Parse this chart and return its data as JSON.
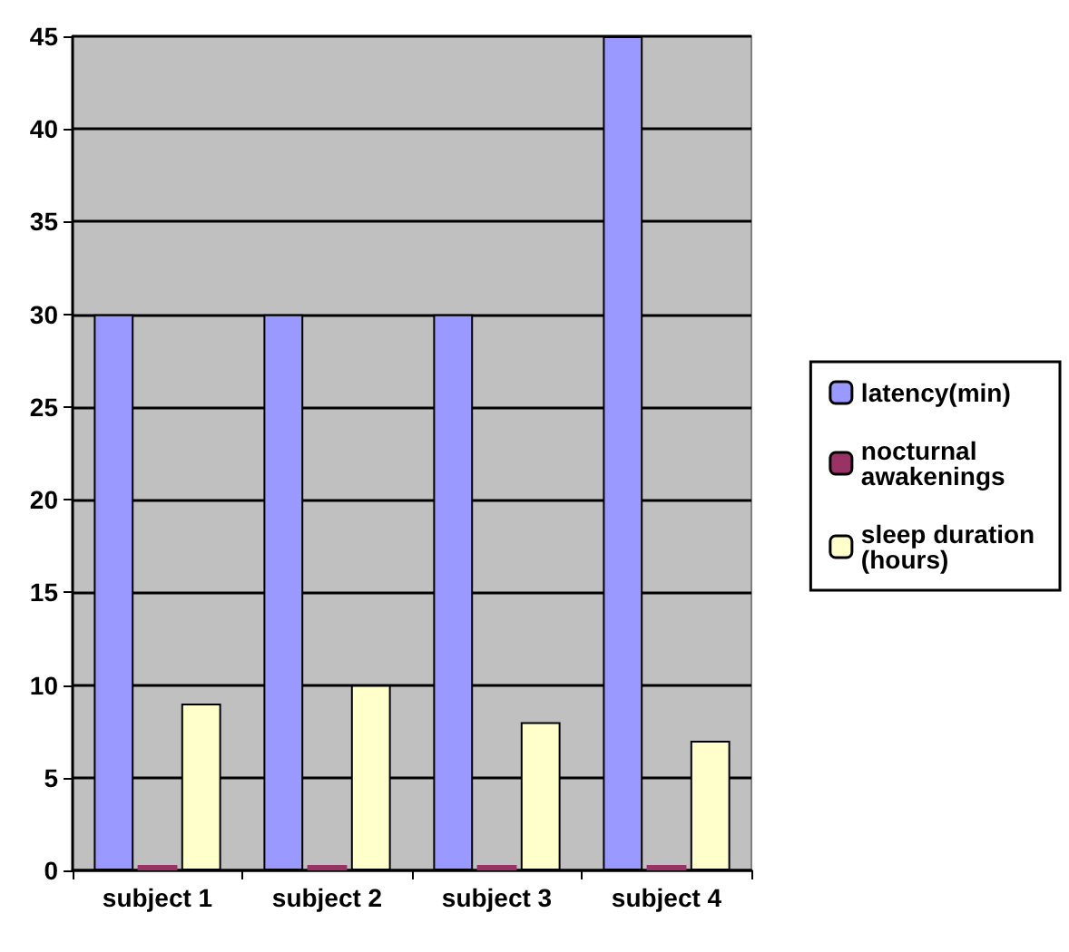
{
  "chart_data": {
    "type": "bar",
    "categories": [
      "subject 1",
      "subject 2",
      "subject 3",
      "subject 4"
    ],
    "series": [
      {
        "name": "latency(min)",
        "color": "#9999ff",
        "values": [
          30,
          30,
          30,
          45
        ]
      },
      {
        "name": "nocturnal awakenings",
        "color": "#993366",
        "values": [
          0,
          0,
          0,
          0
        ]
      },
      {
        "name": "sleep duration (hours)",
        "color": "#ffffcc",
        "values": [
          9,
          10,
          8,
          7
        ]
      }
    ],
    "ylim": [
      0,
      45
    ],
    "yticks": [
      0,
      5,
      10,
      15,
      20,
      25,
      30,
      35,
      40,
      45
    ],
    "grid": "y",
    "legend": "right"
  }
}
